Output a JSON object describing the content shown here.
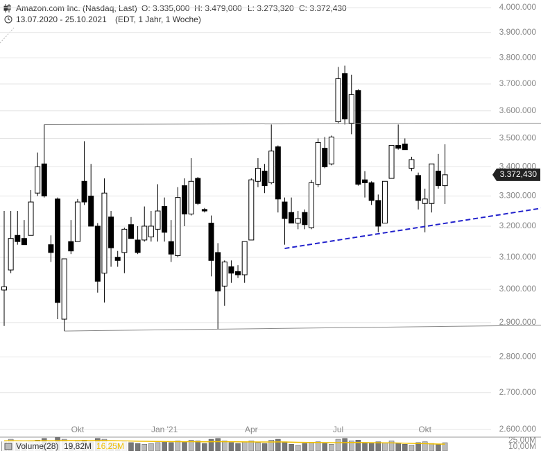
{
  "header": {
    "ohlc": [
      "O: 3.335,000",
      "H: 3.479,000",
      "L: 3.273,320",
      "C: 3.372,430"
    ],
    "period": "13.07.2020 - 25.10.2021",
    "settings": "(EDT, 1 Jahr, 1 Woche)"
  },
  "chart_data": [
    {
      "type": "candlestick",
      "title": "Amazon.com Inc. (Nasdaq, Last)",
      "log": true,
      "grid": true,
      "up_color": "#ffffff",
      "down_color": "#000000",
      "categories": [
        null,
        null,
        null,
        null,
        null,
        null,
        null,
        null,
        null,
        null,
        null,
        "Okt",
        null,
        null,
        null,
        null,
        null,
        null,
        null,
        null,
        null,
        null,
        null,
        null,
        "Jan '21",
        null,
        null,
        null,
        null,
        null,
        null,
        null,
        null,
        null,
        null,
        null,
        null,
        "Apr",
        null,
        null,
        null,
        null,
        null,
        null,
        null,
        null,
        null,
        null,
        null,
        null,
        "Jul",
        null,
        null,
        null,
        null,
        null,
        null,
        null,
        null,
        null,
        null,
        null,
        null,
        "Okt",
        null,
        null,
        null
      ],
      "open": [
        2998000,
        3060000,
        3170000,
        3160000,
        3170000,
        3310000,
        3410000,
        3140000,
        3290000,
        2910000,
        3150000,
        3150000,
        3350000,
        3300000,
        3200000,
        3050000,
        3230000,
        3100000,
        3115000,
        3205000,
        3155000,
        3155000,
        3165000,
        3190000,
        3265000,
        3150000,
        3105000,
        3335000,
        3240000,
        3360000,
        3255000,
        3210000,
        3115000,
        3010000,
        3070000,
        3055000,
        3045000,
        3155000,
        3350000,
        3385000,
        3345000,
        3470000,
        3280000,
        3245000,
        3210000,
        3245000,
        3195000,
        3340000,
        3465000,
        3410000,
        3560000,
        3740000,
        3555000,
        3675000,
        3355000,
        3345000,
        3285000,
        3210000,
        3360000,
        3475000,
        3480000,
        3395000,
        3370000,
        3275000,
        3275000,
        3385000,
        3335000
      ],
      "high": [
        3250000,
        3250000,
        3250000,
        3220000,
        3320000,
        3450000,
        3550000,
        3170000,
        3295000,
        3095000,
        3220000,
        3290000,
        3490000,
        3410000,
        3210000,
        3360000,
        3250000,
        3120000,
        3195000,
        3230000,
        3200000,
        3265000,
        3250000,
        3340000,
        3295000,
        3220000,
        3330000,
        3360000,
        3430000,
        3365000,
        3260000,
        3235000,
        3145000,
        3090000,
        3090000,
        3075000,
        3150000,
        3360000,
        3430000,
        3410000,
        3550000,
        3475000,
        3295000,
        3295000,
        3250000,
        3255000,
        3355000,
        3500000,
        3505000,
        3510000,
        3765000,
        3770000,
        3735000,
        3680000,
        3385000,
        3350000,
        3305000,
        3350000,
        3475000,
        3550000,
        3500000,
        3435000,
        3380000,
        3325000,
        3410000,
        3445000,
        3479000
      ],
      "low": [
        2890000,
        3050000,
        3140000,
        3140000,
        3170000,
        3300000,
        3295000,
        3085000,
        2910000,
        2875000,
        3110000,
        3150000,
        3270000,
        3200000,
        2990000,
        2960000,
        3070000,
        3070000,
        3050000,
        3160000,
        3110000,
        3150000,
        3150000,
        3150000,
        3150000,
        3085000,
        3100000,
        3200000,
        3235000,
        3270000,
        3245000,
        3040000,
        2880000,
        2950000,
        3020000,
        3035000,
        3020000,
        3155000,
        3330000,
        3310000,
        3340000,
        3245000,
        3140000,
        3210000,
        3190000,
        3190000,
        3190000,
        3330000,
        3395000,
        3405000,
        3555000,
        3550000,
        3515000,
        3335000,
        3295000,
        3270000,
        3180000,
        3210000,
        3360000,
        3460000,
        3460000,
        3385000,
        3255000,
        3180000,
        3245000,
        3325000,
        3273320
      ],
      "close": [
        3008000,
        3160000,
        3150000,
        3140000,
        3280000,
        3400000,
        3300000,
        3115000,
        2960000,
        3095000,
        3120000,
        3280000,
        3280000,
        3200000,
        3025000,
        3310000,
        3130000,
        3090000,
        3190000,
        3160000,
        3115000,
        3200000,
        3200000,
        3250000,
        3180000,
        3110000,
        3295000,
        3240000,
        3350000,
        3275000,
        3250000,
        3090000,
        2995000,
        3085000,
        3050000,
        3045000,
        3150000,
        3355000,
        3395000,
        3335000,
        3455000,
        3290000,
        3225000,
        3210000,
        3225000,
        3205000,
        3345000,
        3485000,
        3400000,
        3505000,
        3720000,
        3570000,
        3660000,
        3340000,
        3345000,
        3285000,
        3200000,
        3350000,
        3475000,
        3465000,
        3460000,
        3425000,
        3285000,
        3290000,
        3410000,
        3335000,
        3372430
      ],
      "last_label": "3.372,430",
      "ylim": [
        2600000,
        4000000
      ],
      "yticks": [
        {
          "value": 4000000,
          "label": "4.000.000"
        },
        {
          "value": 3900000,
          "label": "3.900.000"
        },
        {
          "value": 3800000,
          "label": "3.800.000"
        },
        {
          "value": 3700000,
          "label": "3.700.000"
        },
        {
          "value": 3600000,
          "label": "3.600.000"
        },
        {
          "value": 3500000,
          "label": "3.500.000"
        },
        {
          "value": 3400000,
          "label": "3.400.000"
        },
        {
          "value": 3300000,
          "label": "3.300.000"
        },
        {
          "value": 3200000,
          "label": "3.200.000"
        },
        {
          "value": 3100000,
          "label": "3.100.000"
        },
        {
          "value": 3000000,
          "label": "3.000.000"
        },
        {
          "value": 2900000,
          "label": "2.900.000"
        },
        {
          "value": 2800000,
          "label": "2.800.000"
        },
        {
          "value": 2700000,
          "label": "2.700.000"
        },
        {
          "value": 2600000,
          "label": "2.600.000"
        }
      ],
      "trendlines": [
        {
          "color": "#888888",
          "dashed": false,
          "x": [
            6,
            80.4
          ],
          "y": [
            3550000,
            3555000
          ]
        },
        {
          "color": "#888888",
          "dashed": false,
          "x": [
            9,
            80.4
          ],
          "y": [
            2875000,
            2892000
          ]
        },
        {
          "color": "#2222cc",
          "dashed": true,
          "x": [
            42,
            80.4
          ],
          "y": [
            3128000,
            3259000
          ]
        }
      ]
    },
    {
      "type": "bar",
      "ylim": [
        0,
        33
      ],
      "yticks": [
        {
          "value": 25,
          "label": "25,00M"
        },
        {
          "value": 10,
          "label": "10,00M"
        }
      ],
      "series": [
        {
          "name": "Volume(28)",
          "color": "#bbbbbb",
          "last_value_label": "19,82M",
          "values": [
            22,
            28,
            20,
            18,
            24,
            26,
            30,
            22,
            32,
            28,
            20,
            24,
            26,
            22,
            30,
            28,
            20,
            18,
            22,
            20,
            18,
            16,
            18,
            20,
            22,
            20,
            24,
            22,
            26,
            24,
            18,
            28,
            30,
            24,
            20,
            18,
            22,
            24,
            20,
            18,
            26,
            28,
            22,
            16,
            14,
            18,
            20,
            22,
            18,
            16,
            28,
            30,
            24,
            26,
            20,
            18,
            22,
            20,
            24,
            18,
            16,
            14,
            20,
            22,
            18,
            16,
            19.82
          ]
        },
        {
          "type": "line",
          "color": "#f0c000",
          "last_value_label": "16,25M",
          "values": [
            24.1,
            24.3,
            24.2,
            24.0,
            24.1,
            24.4,
            24.6,
            24.5,
            24.8,
            25.0,
            24.9,
            24.8,
            24.9,
            24.7,
            24.9,
            25.0,
            24.6,
            24.2,
            24.0,
            23.8,
            23.4,
            23.0,
            22.8,
            22.6,
            22.5,
            22.3,
            22.2,
            22.1,
            22.2,
            22.0,
            21.8,
            22.0,
            22.2,
            22.1,
            22.0,
            21.8,
            21.7,
            21.6,
            21.5,
            21.4,
            21.5,
            21.6,
            21.4,
            21.0,
            20.6,
            20.4,
            20.3,
            20.2,
            20.0,
            19.7,
            19.9,
            20.1,
            20.2,
            20.3,
            20.1,
            19.8,
            19.6,
            19.4,
            19.3,
            19.0,
            18.6,
            18.1,
            17.8,
            17.5,
            17.0,
            16.6,
            16.25
          ]
        }
      ]
    }
  ]
}
